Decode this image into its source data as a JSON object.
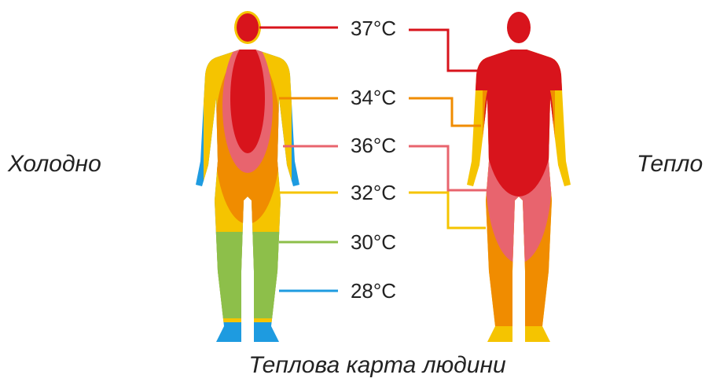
{
  "left_label": "Холодно",
  "right_label": "Тепло",
  "caption": "Теплова карта людини",
  "temperatures": [
    "37°C",
    "34°C",
    "36°C",
    "32°C",
    "30°C",
    "28°C"
  ]
}
